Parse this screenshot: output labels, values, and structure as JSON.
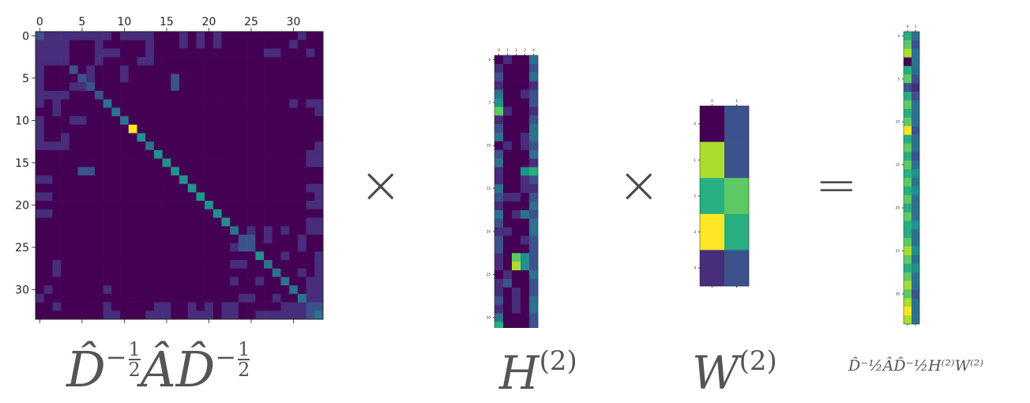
{
  "colors": {
    "cmap": [
      "#440154",
      "#472d7b",
      "#3b528b",
      "#2c728e",
      "#21918c",
      "#28ae80",
      "#5ec962",
      "#addc30",
      "#fde725"
    ]
  },
  "operators": {
    "times1": "×",
    "times2": "×",
    "equals": "="
  },
  "labels": {
    "a_base": "D̂",
    "a_exp": "−",
    "a_frac_num": "1",
    "a_frac_den": "2",
    "a_mid": "ÂD̂",
    "h_base": "H",
    "h_sup": "(2)",
    "w_base": "W",
    "w_sup": "(2)",
    "out_text": "D̂⁻½ÂD̂⁻½H⁽²⁾W⁽²⁾"
  },
  "chart_data": [
    {
      "type": "heatmap",
      "name": "adjacency",
      "rows": 34,
      "cols": 34,
      "xticks": [
        "0",
        "5",
        "10",
        "15",
        "20",
        "25",
        "30"
      ],
      "yticks": [
        "0",
        "5",
        "10",
        "15",
        "20",
        "25",
        "30"
      ],
      "tick_values": [
        0,
        5,
        10,
        15,
        20,
        25,
        30
      ],
      "vmin": 0,
      "vmax": 8,
      "cells": [
        [
          0,
          0,
          2
        ],
        [
          0,
          1,
          1
        ],
        [
          0,
          2,
          1
        ],
        [
          0,
          3,
          1
        ],
        [
          0,
          4,
          1
        ],
        [
          0,
          5,
          1
        ],
        [
          0,
          6,
          1
        ],
        [
          0,
          7,
          1
        ],
        [
          0,
          8,
          1
        ],
        [
          0,
          10,
          1
        ],
        [
          0,
          11,
          1
        ],
        [
          0,
          12,
          1
        ],
        [
          0,
          13,
          1
        ],
        [
          0,
          17,
          1
        ],
        [
          0,
          19,
          1
        ],
        [
          0,
          21,
          1
        ],
        [
          0,
          31,
          1
        ],
        [
          1,
          0,
          1
        ],
        [
          1,
          1,
          1
        ],
        [
          1,
          2,
          1
        ],
        [
          1,
          3,
          1
        ],
        [
          1,
          7,
          1
        ],
        [
          1,
          13,
          1
        ],
        [
          1,
          17,
          1
        ],
        [
          1,
          19,
          1
        ],
        [
          1,
          21,
          1
        ],
        [
          1,
          30,
          1
        ],
        [
          2,
          0,
          1
        ],
        [
          2,
          1,
          1
        ],
        [
          2,
          2,
          1
        ],
        [
          2,
          3,
          1
        ],
        [
          2,
          7,
          1
        ],
        [
          2,
          8,
          1
        ],
        [
          2,
          9,
          1
        ],
        [
          2,
          13,
          1
        ],
        [
          2,
          27,
          1
        ],
        [
          2,
          28,
          1
        ],
        [
          2,
          32,
          1
        ],
        [
          3,
          0,
          1
        ],
        [
          3,
          1,
          1
        ],
        [
          3,
          2,
          1
        ],
        [
          3,
          3,
          1
        ],
        [
          3,
          7,
          1
        ],
        [
          3,
          12,
          1
        ],
        [
          3,
          13,
          1
        ],
        [
          4,
          0,
          1
        ],
        [
          4,
          4,
          2
        ],
        [
          4,
          6,
          1
        ],
        [
          4,
          10,
          1
        ],
        [
          5,
          0,
          1
        ],
        [
          5,
          5,
          2
        ],
        [
          5,
          6,
          1
        ],
        [
          5,
          10,
          1
        ],
        [
          5,
          16,
          1
        ],
        [
          6,
          0,
          1
        ],
        [
          6,
          4,
          1
        ],
        [
          6,
          5,
          1
        ],
        [
          6,
          6,
          2
        ],
        [
          6,
          16,
          1
        ],
        [
          7,
          0,
          1
        ],
        [
          7,
          1,
          1
        ],
        [
          7,
          2,
          1
        ],
        [
          7,
          3,
          1
        ],
        [
          7,
          7,
          2
        ],
        [
          8,
          0,
          1
        ],
        [
          8,
          2,
          1
        ],
        [
          8,
          8,
          3
        ],
        [
          8,
          30,
          1
        ],
        [
          8,
          32,
          1
        ],
        [
          8,
          33,
          1
        ],
        [
          9,
          2,
          1
        ],
        [
          9,
          9,
          3
        ],
        [
          9,
          33,
          1
        ],
        [
          10,
          0,
          1
        ],
        [
          10,
          4,
          1
        ],
        [
          10,
          5,
          1
        ],
        [
          10,
          10,
          3
        ],
        [
          11,
          0,
          1
        ],
        [
          11,
          11,
          8
        ],
        [
          12,
          0,
          1
        ],
        [
          12,
          3,
          1
        ],
        [
          12,
          12,
          4
        ],
        [
          13,
          0,
          1
        ],
        [
          13,
          1,
          1
        ],
        [
          13,
          2,
          1
        ],
        [
          13,
          3,
          1
        ],
        [
          13,
          13,
          3
        ],
        [
          13,
          33,
          1
        ],
        [
          14,
          14,
          4
        ],
        [
          14,
          32,
          1
        ],
        [
          14,
          33,
          1
        ],
        [
          15,
          15,
          4
        ],
        [
          15,
          32,
          1
        ],
        [
          15,
          33,
          1
        ],
        [
          16,
          5,
          2
        ],
        [
          16,
          6,
          2
        ],
        [
          16,
          16,
          4
        ],
        [
          17,
          0,
          1
        ],
        [
          17,
          1,
          1
        ],
        [
          17,
          17,
          4
        ],
        [
          18,
          18,
          4
        ],
        [
          18,
          32,
          1
        ],
        [
          18,
          33,
          1
        ],
        [
          19,
          0,
          1
        ],
        [
          19,
          1,
          1
        ],
        [
          19,
          19,
          4
        ],
        [
          19,
          33,
          1
        ],
        [
          20,
          20,
          4
        ],
        [
          20,
          32,
          1
        ],
        [
          20,
          33,
          1
        ],
        [
          21,
          0,
          1
        ],
        [
          21,
          1,
          1
        ],
        [
          21,
          21,
          4
        ],
        [
          22,
          22,
          4
        ],
        [
          22,
          32,
          1
        ],
        [
          22,
          33,
          1
        ],
        [
          23,
          23,
          3
        ],
        [
          23,
          25,
          1
        ],
        [
          23,
          27,
          1
        ],
        [
          23,
          29,
          1
        ],
        [
          23,
          32,
          1
        ],
        [
          23,
          33,
          1
        ],
        [
          24,
          24,
          2
        ],
        [
          24,
          25,
          2
        ],
        [
          24,
          27,
          1
        ],
        [
          24,
          31,
          1
        ],
        [
          25,
          23,
          1
        ],
        [
          25,
          24,
          2
        ],
        [
          25,
          25,
          2
        ],
        [
          25,
          31,
          1
        ],
        [
          26,
          26,
          4
        ],
        [
          26,
          29,
          1
        ],
        [
          26,
          33,
          1
        ],
        [
          27,
          2,
          1
        ],
        [
          27,
          23,
          1
        ],
        [
          27,
          24,
          1
        ],
        [
          27,
          27,
          3
        ],
        [
          27,
          33,
          1
        ],
        [
          28,
          2,
          1
        ],
        [
          28,
          28,
          3
        ],
        [
          28,
          31,
          1
        ],
        [
          28,
          33,
          1
        ],
        [
          29,
          23,
          1
        ],
        [
          29,
          26,
          1
        ],
        [
          29,
          29,
          3
        ],
        [
          29,
          32,
          1
        ],
        [
          29,
          33,
          1
        ],
        [
          30,
          1,
          1
        ],
        [
          30,
          8,
          1
        ],
        [
          30,
          30,
          3
        ],
        [
          30,
          32,
          1
        ],
        [
          30,
          33,
          1
        ],
        [
          31,
          0,
          1
        ],
        [
          31,
          24,
          1
        ],
        [
          31,
          25,
          1
        ],
        [
          31,
          28,
          1
        ],
        [
          31,
          31,
          3
        ],
        [
          31,
          32,
          1
        ],
        [
          31,
          33,
          1
        ],
        [
          32,
          2,
          1
        ],
        [
          32,
          8,
          1
        ],
        [
          32,
          14,
          1
        ],
        [
          32,
          15,
          1
        ],
        [
          32,
          18,
          1
        ],
        [
          32,
          20,
          1
        ],
        [
          32,
          22,
          1
        ],
        [
          32,
          23,
          1
        ],
        [
          32,
          29,
          1
        ],
        [
          32,
          30,
          1
        ],
        [
          32,
          31,
          1
        ],
        [
          32,
          32,
          2
        ],
        [
          32,
          33,
          2
        ],
        [
          33,
          8,
          1
        ],
        [
          33,
          9,
          1
        ],
        [
          33,
          13,
          1
        ],
        [
          33,
          14,
          1
        ],
        [
          33,
          15,
          1
        ],
        [
          33,
          18,
          1
        ],
        [
          33,
          19,
          1
        ],
        [
          33,
          20,
          1
        ],
        [
          33,
          22,
          1
        ],
        [
          33,
          23,
          1
        ],
        [
          33,
          26,
          1
        ],
        [
          33,
          27,
          1
        ],
        [
          33,
          28,
          1
        ],
        [
          33,
          29,
          1
        ],
        [
          33,
          30,
          1
        ],
        [
          33,
          31,
          1
        ],
        [
          33,
          32,
          2
        ],
        [
          33,
          33,
          3
        ]
      ]
    },
    {
      "type": "heatmap",
      "name": "H2",
      "rows": 34,
      "cols": 5,
      "xticks": [
        "0",
        "1",
        "2",
        "3",
        "4"
      ],
      "yticks": [
        "0",
        "5",
        "10",
        "15",
        "20",
        "25",
        "30"
      ],
      "tick_values": [
        0,
        5,
        10,
        15,
        20,
        25,
        30
      ],
      "vmin": 0,
      "vmax": 8,
      "values": [
        [
          0,
          1,
          0,
          0,
          3
        ],
        [
          1,
          0,
          0,
          0,
          2
        ],
        [
          2,
          0,
          0,
          0,
          3
        ],
        [
          1,
          0,
          0,
          0,
          1
        ],
        [
          3,
          0,
          0,
          1,
          2
        ],
        [
          4,
          0,
          0,
          0,
          2
        ],
        [
          6,
          1,
          0,
          0,
          1
        ],
        [
          1,
          0,
          0,
          0,
          2
        ],
        [
          2,
          0,
          0,
          0,
          3
        ],
        [
          3,
          0,
          0,
          1,
          3
        ],
        [
          0,
          1,
          0,
          1,
          2
        ],
        [
          2,
          0,
          0,
          0,
          3
        ],
        [
          3,
          0,
          0,
          0,
          1
        ],
        [
          1,
          0,
          0,
          4,
          5
        ],
        [
          1,
          0,
          0,
          1,
          2
        ],
        [
          3,
          0,
          0,
          1,
          1
        ],
        [
          2,
          1,
          1,
          0,
          2
        ],
        [
          1,
          0,
          0,
          0,
          3
        ],
        [
          3,
          0,
          1,
          3,
          2
        ],
        [
          2,
          0,
          0,
          0,
          3
        ],
        [
          1,
          1,
          0,
          0,
          3
        ],
        [
          2,
          0,
          0,
          1,
          2
        ],
        [
          2,
          0,
          0,
          0,
          2
        ],
        [
          1,
          0,
          6,
          4,
          2
        ],
        [
          1,
          0,
          7,
          4,
          2
        ],
        [
          0,
          1,
          0,
          0,
          3
        ],
        [
          1,
          2,
          0,
          0,
          2
        ],
        [
          1,
          0,
          1,
          0,
          2
        ],
        [
          2,
          0,
          1,
          0,
          3
        ],
        [
          1,
          0,
          1,
          0,
          3
        ],
        [
          3,
          0,
          0,
          0,
          2
        ],
        [
          5,
          0,
          0,
          0,
          2
        ],
        [
          8,
          1,
          0,
          0,
          2
        ],
        [
          3,
          0,
          0,
          0,
          2
        ]
      ]
    },
    {
      "type": "heatmap",
      "name": "W2",
      "rows": 5,
      "cols": 2,
      "xticks": [
        "0",
        "1"
      ],
      "yticks": [
        "0",
        "1",
        "2",
        "3",
        "4"
      ],
      "tick_values": [
        0,
        1,
        2,
        3,
        4
      ],
      "vmin": 0,
      "vmax": 8,
      "values": [
        [
          0,
          2
        ],
        [
          7,
          2
        ],
        [
          5,
          6
        ],
        [
          8,
          5
        ],
        [
          1,
          2
        ]
      ]
    },
    {
      "type": "heatmap",
      "name": "output",
      "rows": 34,
      "cols": 2,
      "xticks": [
        "0",
        "1"
      ],
      "yticks": [
        "0",
        "5",
        "10",
        "15",
        "20",
        "25",
        "30"
      ],
      "tick_values": [
        0,
        5,
        10,
        15,
        20,
        25,
        30
      ],
      "vmin": 0,
      "vmax": 8,
      "values": [
        [
          5,
          3
        ],
        [
          6,
          2
        ],
        [
          7,
          3
        ],
        [
          0,
          3
        ],
        [
          5,
          3
        ],
        [
          6,
          2
        ],
        [
          2,
          1
        ],
        [
          5,
          2
        ],
        [
          6,
          3
        ],
        [
          5,
          3
        ],
        [
          6,
          3
        ],
        [
          8,
          2
        ],
        [
          5,
          3
        ],
        [
          6,
          3
        ],
        [
          5,
          2
        ],
        [
          6,
          3
        ],
        [
          5,
          4
        ],
        [
          6,
          3
        ],
        [
          5,
          4
        ],
        [
          6,
          3
        ],
        [
          5,
          3
        ],
        [
          6,
          3
        ],
        [
          5,
          4
        ],
        [
          5,
          3
        ],
        [
          6,
          3
        ],
        [
          7,
          4
        ],
        [
          6,
          3
        ],
        [
          5,
          4
        ],
        [
          6,
          3
        ],
        [
          7,
          3
        ],
        [
          6,
          2
        ],
        [
          7,
          3
        ],
        [
          8,
          3
        ],
        [
          7,
          3
        ]
      ]
    }
  ]
}
